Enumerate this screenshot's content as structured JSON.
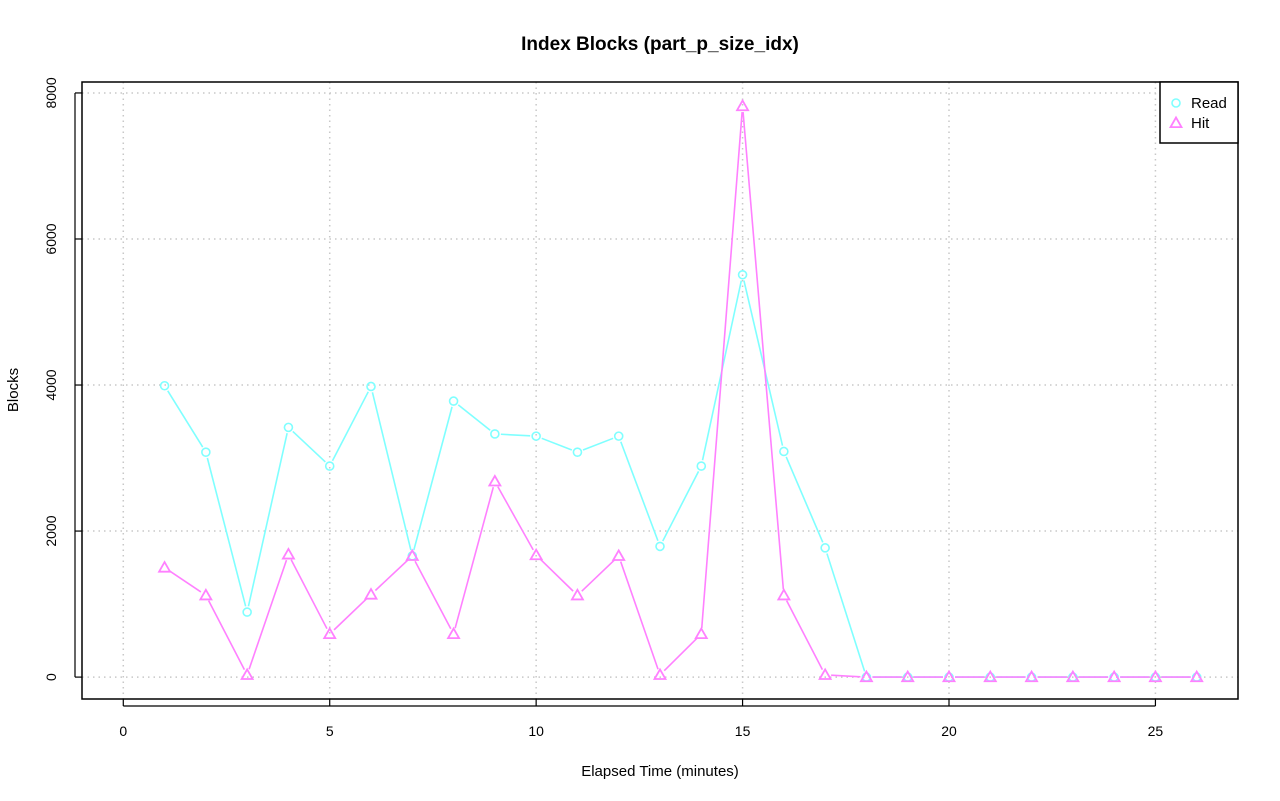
{
  "chart_data": {
    "type": "line",
    "title": "Index Blocks (part_p_size_idx)",
    "xlabel": "Elapsed Time (minutes)",
    "ylabel": "Blocks",
    "xlim": [
      -1,
      27
    ],
    "ylim": [
      -300,
      8150
    ],
    "xticks": [
      0,
      5,
      10,
      15,
      20,
      25
    ],
    "yticks": [
      0,
      2000,
      4000,
      6000,
      8000
    ],
    "grid": true,
    "legend_position": "top-right",
    "x": [
      1,
      2,
      3,
      4,
      5,
      6,
      7,
      8,
      9,
      10,
      11,
      12,
      13,
      14,
      15,
      16,
      17,
      18,
      19,
      20,
      21,
      22,
      23,
      24,
      25,
      26
    ],
    "series": [
      {
        "name": "Read",
        "color": "#7fffff",
        "marker": "circle",
        "values": [
          3990,
          3080,
          890,
          3420,
          2890,
          3980,
          1660,
          3780,
          3330,
          3300,
          3080,
          3300,
          1790,
          2890,
          5510,
          3090,
          1770,
          0,
          0,
          0,
          0,
          0,
          0,
          0,
          0,
          0
        ]
      },
      {
        "name": "Hit",
        "color": "#ff80ff",
        "marker": "triangle",
        "values": [
          1500,
          1120,
          30,
          1680,
          590,
          1130,
          1660,
          590,
          2680,
          1670,
          1120,
          1660,
          30,
          590,
          7820,
          1120,
          30,
          0,
          0,
          0,
          0,
          0,
          0,
          0,
          0,
          0
        ]
      }
    ]
  }
}
